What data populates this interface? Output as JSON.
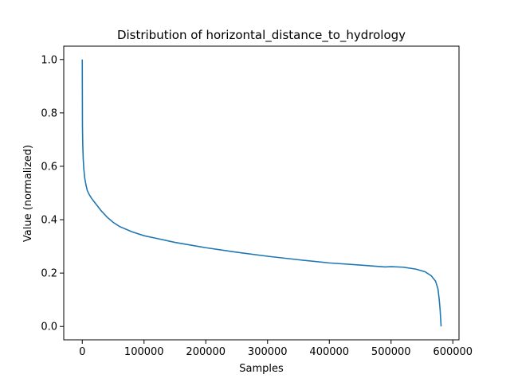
{
  "chart_data": {
    "type": "line",
    "title": "Distribution of horizontal_distance_to_hydrology",
    "xlabel": "Samples",
    "ylabel": "Value (normalized)",
    "xlim": [
      -30000,
      610000
    ],
    "ylim": [
      -0.05,
      1.05
    ],
    "x_ticks": [
      0,
      100000,
      200000,
      300000,
      400000,
      500000,
      600000
    ],
    "x_tick_labels": [
      "0",
      "100000",
      "200000",
      "300000",
      "400000",
      "500000",
      "600000"
    ],
    "y_ticks": [
      0.0,
      0.2,
      0.4,
      0.6,
      0.8,
      1.0
    ],
    "y_tick_labels": [
      "0.0",
      "0.2",
      "0.4",
      "0.6",
      "0.8",
      "1.0"
    ],
    "grid": false,
    "line_color": "#1f77b4",
    "series": [
      {
        "x": [
          0,
          300,
          800,
          1500,
          2500,
          4000,
          6000,
          8000,
          11000,
          15000,
          20000,
          25000,
          30000,
          40000,
          50000,
          60000,
          80000,
          100000,
          120000,
          150000,
          200000,
          250000,
          300000,
          350000,
          400000,
          450000,
          490000,
          500000,
          520000,
          540000,
          555000,
          565000,
          572000,
          576000,
          578000,
          579500,
          580500,
          581000
        ],
        "y": [
          1.0,
          0.75,
          0.68,
          0.63,
          0.59,
          0.555,
          0.53,
          0.51,
          0.495,
          0.48,
          0.465,
          0.45,
          0.435,
          0.41,
          0.39,
          0.375,
          0.355,
          0.34,
          0.33,
          0.315,
          0.295,
          0.278,
          0.263,
          0.25,
          0.238,
          0.23,
          0.223,
          0.224,
          0.222,
          0.215,
          0.205,
          0.19,
          0.17,
          0.14,
          0.1,
          0.06,
          0.02,
          0.0
        ]
      }
    ]
  }
}
